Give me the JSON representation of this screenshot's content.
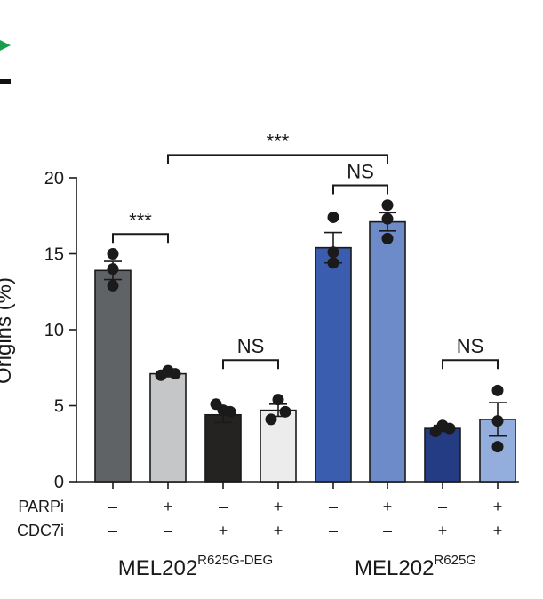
{
  "chart_data": {
    "type": "bar",
    "ylabel": "Origins (%)",
    "ylim": [
      0,
      20
    ],
    "yticks": [
      "0",
      "5",
      "10",
      "15",
      "20"
    ],
    "conditions": [
      {
        "label": "PARPi",
        "values": [
          "–",
          "+",
          "–",
          "+",
          "–",
          "+",
          "–",
          "+"
        ]
      },
      {
        "label": "CDC7i",
        "values": [
          "–",
          "–",
          "+",
          "+",
          "–",
          "–",
          "+",
          "+"
        ]
      }
    ],
    "groups": [
      {
        "name": "MEL202",
        "superscript": "R625G-DEG",
        "bars": [
          0,
          1,
          2,
          3
        ]
      },
      {
        "name": "MEL202",
        "superscript": "R625G",
        "bars": [
          4,
          5,
          6,
          7
        ]
      }
    ],
    "bars": [
      {
        "mean": 13.9,
        "sem": 0.6,
        "points": [
          15.0,
          14.0,
          12.9
        ],
        "color": "#606366"
      },
      {
        "mean": 7.1,
        "sem": 0.2,
        "points": [
          7.0,
          7.3,
          7.1
        ],
        "color": "#c4c6c8"
      },
      {
        "mean": 4.4,
        "sem": 0.5,
        "points": [
          5.1,
          4.7,
          4.6
        ],
        "color": "#252222"
      },
      {
        "mean": 4.7,
        "sem": 0.4,
        "points": [
          4.1,
          5.4,
          4.6
        ],
        "color": "#ececec"
      },
      {
        "mean": 15.4,
        "sem": 1.0,
        "points": [
          17.4,
          14.4,
          15.1
        ],
        "color": "#3a5db0"
      },
      {
        "mean": 17.1,
        "sem": 0.6,
        "points": [
          18.2,
          17.3,
          16.0
        ],
        "color": "#6e8bc9"
      },
      {
        "mean": 3.5,
        "sem": 0.2,
        "points": [
          3.3,
          3.7,
          3.5
        ],
        "color": "#243c84"
      },
      {
        "mean": 4.1,
        "sem": 1.1,
        "points": [
          6.0,
          4.0,
          2.3
        ],
        "color": "#93addd"
      }
    ],
    "comparisons": [
      {
        "from": 0,
        "to": 1,
        "label": "***",
        "level": 16.3
      },
      {
        "from": 2,
        "to": 3,
        "label": "NS",
        "level": 8.0
      },
      {
        "from": 4,
        "to": 5,
        "label": "NS",
        "level": 19.5
      },
      {
        "from": 6,
        "to": 7,
        "label": "NS",
        "level": 8.0
      },
      {
        "from": 1,
        "to": 5,
        "label": "***",
        "level": 21.5
      }
    ]
  },
  "decor": {
    "arrow_color": "#1a9e4b"
  }
}
